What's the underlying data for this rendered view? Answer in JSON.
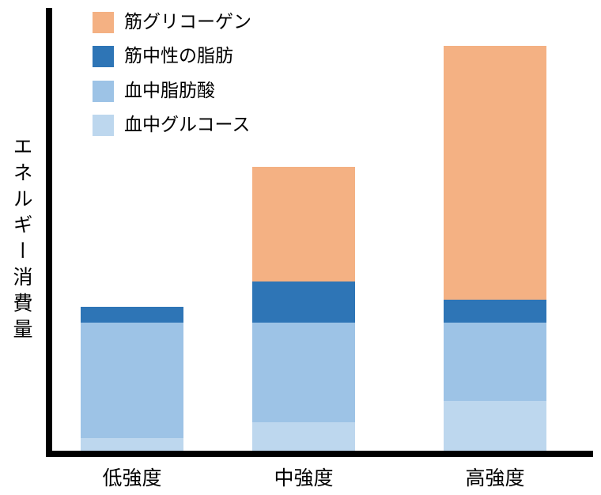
{
  "chart_data": {
    "type": "bar",
    "stacked": true,
    "title": "",
    "xlabel": "",
    "ylabel": "エネルギー消費量",
    "categories": [
      "低強度",
      "中強度",
      "高強度"
    ],
    "series": [
      {
        "name": "血中グルコース",
        "color": "#BDD7EE",
        "values": [
          2.9,
          6.4,
          11.2
        ]
      },
      {
        "name": "血中脂肪酸",
        "color": "#9DC3E6",
        "values": [
          26.0,
          22.5,
          17.7
        ]
      },
      {
        "name": "筋中性の脂肪",
        "color": "#2E75B6",
        "values": [
          3.6,
          9.4,
          5.3
        ]
      },
      {
        "name": "筋グリコーゲン",
        "color": "#F4B183",
        "values": [
          0,
          25.8,
          57.3
        ]
      }
    ],
    "value_units": "relative (percent of plot height, no numeric axis shown)",
    "ylim": [
      0,
      100
    ],
    "y_ticks": [],
    "grid": false,
    "legend_position": "top-left",
    "legend_order_top_to_bottom": [
      "筋グリコーゲン",
      "筋中性の脂肪",
      "血中脂肪酸",
      "血中グルコース"
    ],
    "axis_color": "#000000"
  }
}
